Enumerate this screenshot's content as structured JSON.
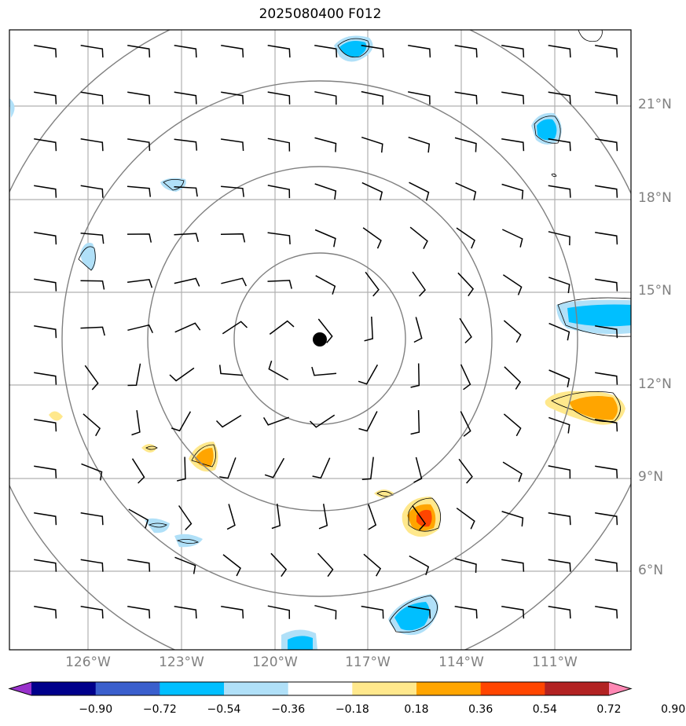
{
  "title": "2025080400 F012",
  "lat_labels": [
    "21°N",
    "18°N",
    "15°N",
    "12°N",
    "9°N",
    "6°N"
  ],
  "lon_labels": [
    "126°W",
    "123°W",
    "120°W",
    "117°W",
    "114°W",
    "111°W"
  ],
  "colorbar": {
    "ticks": [
      "−0.90",
      "−0.72",
      "−0.54",
      "−0.36",
      "−0.18",
      "0.18",
      "0.36",
      "0.54",
      "0.72",
      "0.90"
    ],
    "colors": [
      "#9932cc",
      "#00008b",
      "#3a5fcd",
      "#00bfff",
      "#b0e0f8",
      "#ffffff",
      "#ffe88c",
      "#ffa500",
      "#ff4500",
      "#b22222",
      "#ff88b4"
    ]
  },
  "map": {
    "center_marker": "storm-center-dot",
    "range_rings": 4,
    "feature_colors": {
      "grid": "#b0b0b0",
      "ring": "#808080",
      "barb": "#000000"
    }
  }
}
